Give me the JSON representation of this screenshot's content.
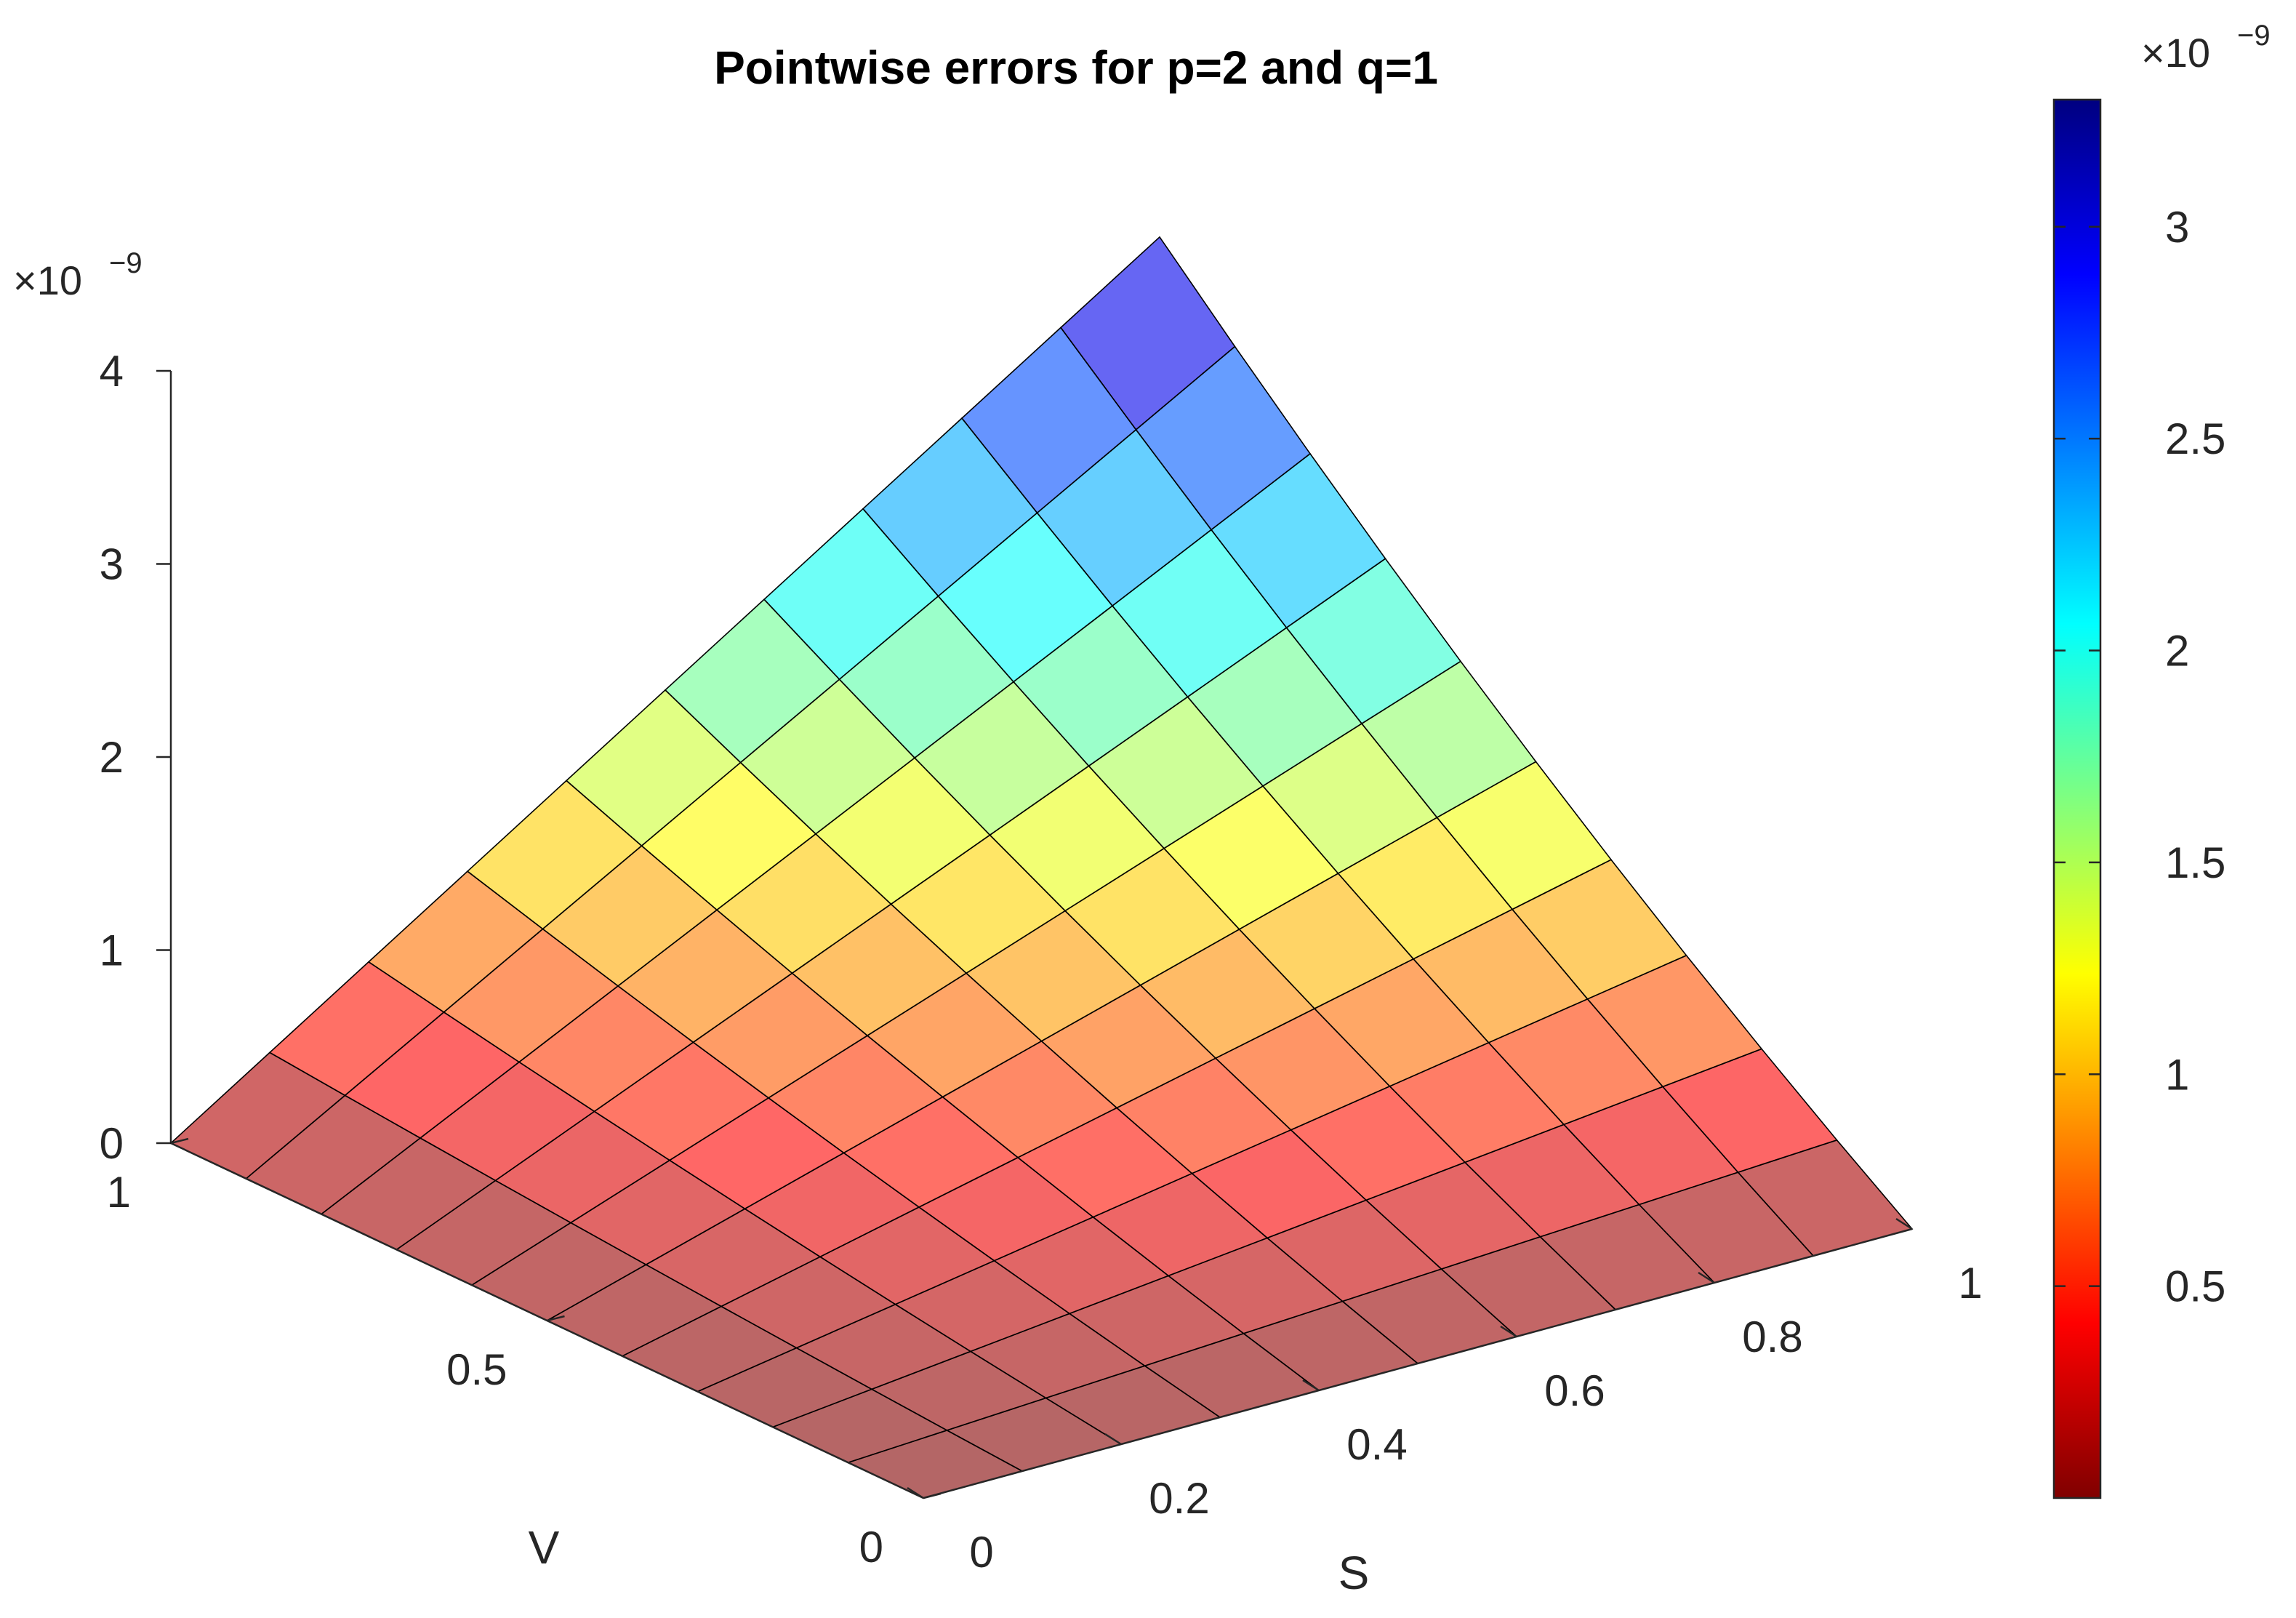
{
  "chart_data": {
    "type": "surface",
    "title": "Pointwise errors for p=2 and q=1",
    "xlabel": "S",
    "ylabel": "V",
    "zlabel": "",
    "x_label_name": "S",
    "y_label_name": "V",
    "x": [
      0,
      0.1,
      0.2,
      0.3,
      0.4,
      0.5,
      0.6,
      0.7,
      0.8,
      0.9,
      1.0
    ],
    "y": [
      0,
      0.1,
      0.2,
      0.3,
      0.4,
      0.5,
      0.6,
      0.7,
      0.8,
      0.9,
      1.0
    ],
    "z_formula_note": "",
    "z_peak": 3.3e-09,
    "xlim": [
      0,
      1
    ],
    "ylim": [
      0,
      1
    ],
    "zlim": [
      0,
      4e-09
    ],
    "x_ticks": [
      "0",
      "0.2",
      "0.4",
      "0.6",
      "0.8",
      "1"
    ],
    "y_ticks": [
      "0",
      "0.5",
      "1"
    ],
    "z_ticks": [
      "0",
      "1",
      "2",
      "3",
      "4"
    ],
    "z_exponent": "×10",
    "z_exponent_power": "−9",
    "colorbar": {
      "colormap": "jet-reversed",
      "range": [
        0,
        3.3e-09
      ],
      "ticks": [
        "0.5",
        "1",
        "1.5",
        "2",
        "2.5",
        "3"
      ],
      "tick_values": [
        0.5,
        1,
        1.5,
        2,
        2.5,
        3
      ],
      "exponent": "×10",
      "exponent_power": "−9"
    },
    "face_alpha": 0.6,
    "grid": false
  }
}
